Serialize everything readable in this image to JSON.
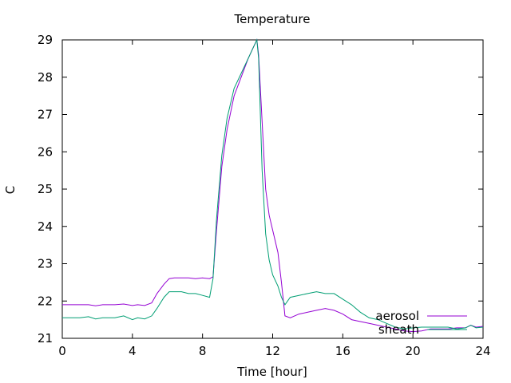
{
  "chart_data": {
    "type": "line",
    "title": "Temperature",
    "xlabel": "Time [hour]",
    "ylabel": "C",
    "xlim": [
      0,
      24
    ],
    "ylim": [
      21,
      29
    ],
    "x_ticks": [
      0,
      4,
      8,
      12,
      16,
      20,
      24
    ],
    "y_ticks": [
      21,
      22,
      23,
      24,
      25,
      26,
      27,
      28,
      29
    ],
    "grid": false,
    "legend_position": "bottom-right",
    "series": [
      {
        "name": "aerosol",
        "color": "#9400d3",
        "x": [
          0,
          0.5,
          1,
          1.5,
          1.9,
          2.3,
          3,
          3.5,
          4,
          4.3,
          4.7,
          5.1,
          5.4,
          5.8,
          6.1,
          6.4,
          6.8,
          7.2,
          7.6,
          8,
          8.4,
          8.6,
          8.8,
          9.1,
          9.4,
          9.8,
          10.2,
          10.6,
          10.9,
          11.1,
          11.2,
          11.4,
          11.6,
          11.8,
          12.0,
          12.3,
          12.5,
          12.7,
          13.0,
          13.5,
          14,
          14.5,
          15,
          15.5,
          16,
          16.5,
          17,
          17.5,
          18,
          18.5,
          19,
          19.5,
          20,
          20.5,
          21,
          21.5,
          22,
          22.5,
          23,
          23.3,
          23.6,
          24
        ],
        "y": [
          21.9,
          21.9,
          21.9,
          21.9,
          21.87,
          21.9,
          21.9,
          21.92,
          21.88,
          21.9,
          21.88,
          21.95,
          22.2,
          22.45,
          22.6,
          22.62,
          22.62,
          22.62,
          22.6,
          22.62,
          22.6,
          22.65,
          23.9,
          25.6,
          26.6,
          27.5,
          28.0,
          28.5,
          28.8,
          29.0,
          28.6,
          26.8,
          25.0,
          24.3,
          23.9,
          23.3,
          22.5,
          21.6,
          21.55,
          21.65,
          21.7,
          21.75,
          21.8,
          21.75,
          21.65,
          21.5,
          21.45,
          21.4,
          21.35,
          21.3,
          21.25,
          21.2,
          21.18,
          21.2,
          21.25,
          21.25,
          21.25,
          21.28,
          21.28,
          21.35,
          21.3,
          21.32
        ]
      },
      {
        "name": "sheath",
        "color": "#009e73",
        "x": [
          0,
          0.5,
          1,
          1.5,
          1.9,
          2.3,
          3,
          3.5,
          4,
          4.3,
          4.7,
          5.1,
          5.4,
          5.8,
          6.1,
          6.4,
          6.8,
          7.2,
          7.6,
          8,
          8.4,
          8.6,
          8.8,
          9.1,
          9.4,
          9.8,
          10.2,
          10.6,
          10.9,
          11.1,
          11.2,
          11.4,
          11.6,
          11.8,
          12.0,
          12.3,
          12.5,
          12.7,
          13.0,
          13.5,
          14,
          14.5,
          15,
          15.5,
          16,
          16.5,
          17,
          17.5,
          18,
          18.5,
          19,
          19.5,
          20,
          20.5,
          21,
          21.5,
          22,
          22.5,
          23,
          23.3,
          23.6,
          24
        ],
        "y": [
          21.55,
          21.55,
          21.55,
          21.58,
          21.52,
          21.55,
          21.55,
          21.6,
          21.5,
          21.55,
          21.52,
          21.6,
          21.8,
          22.1,
          22.25,
          22.25,
          22.25,
          22.2,
          22.2,
          22.15,
          22.1,
          22.6,
          24.2,
          25.9,
          26.9,
          27.7,
          28.1,
          28.5,
          28.8,
          29.0,
          28.5,
          25.5,
          23.8,
          23.1,
          22.7,
          22.4,
          22.1,
          21.9,
          22.1,
          22.15,
          22.2,
          22.25,
          22.2,
          22.2,
          22.05,
          21.9,
          21.7,
          21.55,
          21.5,
          21.4,
          21.3,
          21.25,
          21.28,
          21.3,
          21.3,
          21.3,
          21.3,
          21.25,
          21.28,
          21.35,
          21.28,
          21.3
        ]
      }
    ]
  }
}
